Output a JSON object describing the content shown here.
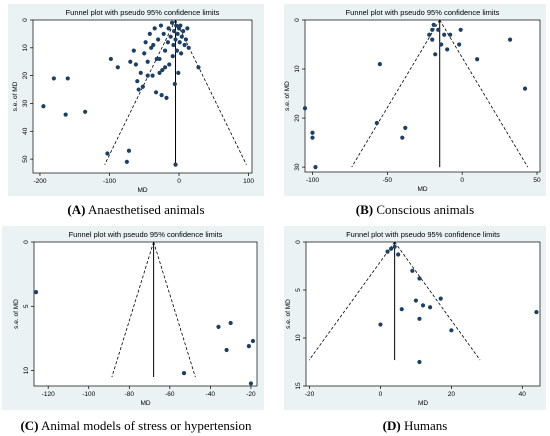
{
  "colors": {
    "background": "#eaf2f3",
    "points": "#1f3f61",
    "lines": "#000000"
  },
  "chart_data": [
    {
      "type": "scatter",
      "title": "Funnel plot with pseudo 95% confidence limits",
      "caption_letter": "(A)",
      "caption_text": "Anaesthetised animals",
      "xlabel": "MD",
      "ylabel": "s.e. of MD",
      "xlim": [
        -210,
        105
      ],
      "ylim": [
        0,
        55
      ],
      "y_inverted": true,
      "xticks": [
        -200,
        -100,
        0,
        100
      ],
      "yticks": [
        0,
        10,
        20,
        30,
        40,
        50
      ],
      "pooled_md": -5,
      "funnel_apex_se": 0,
      "funnel_base_se": 52,
      "points": [
        {
          "x": -195,
          "y": 31
        },
        {
          "x": -180,
          "y": 21
        },
        {
          "x": -160,
          "y": 21
        },
        {
          "x": -163,
          "y": 34
        },
        {
          "x": -135,
          "y": 33
        },
        {
          "x": -103,
          "y": 48
        },
        {
          "x": -98,
          "y": 14
        },
        {
          "x": -75,
          "y": 51
        },
        {
          "x": -72,
          "y": 47
        },
        {
          "x": -5,
          "y": 52
        },
        {
          "x": 28,
          "y": 17
        },
        {
          "x": -88,
          "y": 17
        },
        {
          "x": -70,
          "y": 15
        },
        {
          "x": -65,
          "y": 11
        },
        {
          "x": -60,
          "y": 22
        },
        {
          "x": -55,
          "y": 19
        },
        {
          "x": -52,
          "y": 24
        },
        {
          "x": -50,
          "y": 12
        },
        {
          "x": -48,
          "y": 8
        },
        {
          "x": -45,
          "y": 15
        },
        {
          "x": -42,
          "y": 5
        },
        {
          "x": -40,
          "y": 10
        },
        {
          "x": -38,
          "y": 20
        },
        {
          "x": -35,
          "y": 3
        },
        {
          "x": -33,
          "y": 26
        },
        {
          "x": -30,
          "y": 7
        },
        {
          "x": -28,
          "y": 14
        },
        {
          "x": -26,
          "y": 2
        },
        {
          "x": -24,
          "y": 18
        },
        {
          "x": -22,
          "y": 5
        },
        {
          "x": -20,
          "y": 11
        },
        {
          "x": -18,
          "y": 28
        },
        {
          "x": -16,
          "y": 8
        },
        {
          "x": -15,
          "y": 3
        },
        {
          "x": -14,
          "y": 16
        },
        {
          "x": -12,
          "y": 6
        },
        {
          "x": -10,
          "y": 1
        },
        {
          "x": -9,
          "y": 13
        },
        {
          "x": -8,
          "y": 9
        },
        {
          "x": -7,
          "y": 4
        },
        {
          "x": -6,
          "y": 23
        },
        {
          "x": -5,
          "y": 7
        },
        {
          "x": -4,
          "y": 2
        },
        {
          "x": -3,
          "y": 11
        },
        {
          "x": -2,
          "y": 5
        },
        {
          "x": -1,
          "y": 19
        },
        {
          "x": 0,
          "y": 3
        },
        {
          "x": 1,
          "y": 8
        },
        {
          "x": 2,
          "y": 2
        },
        {
          "x": 3,
          "y": 12
        },
        {
          "x": 4,
          "y": 6
        },
        {
          "x": 6,
          "y": 4
        },
        {
          "x": 8,
          "y": 9
        },
        {
          "x": 10,
          "y": 7
        },
        {
          "x": 12,
          "y": 3
        },
        {
          "x": 14,
          "y": 10
        },
        {
          "x": -25,
          "y": 27
        },
        {
          "x": -20,
          "y": 17
        },
        {
          "x": -58,
          "y": 25
        },
        {
          "x": -45,
          "y": 20
        },
        {
          "x": -32,
          "y": 14
        },
        {
          "x": -28,
          "y": 19
        },
        {
          "x": -62,
          "y": 16
        },
        {
          "x": -37,
          "y": 9
        }
      ]
    },
    {
      "type": "scatter",
      "title": "Funnel plot with pseudo 95% confidence limits",
      "caption_letter": "(B)",
      "caption_text": "Conscious animals",
      "xlabel": "MD",
      "ylabel": "s.e. of MD",
      "xlim": [
        -105,
        52
      ],
      "ylim": [
        0,
        31
      ],
      "y_inverted": true,
      "xticks": [
        -100,
        -50,
        0,
        50
      ],
      "yticks": [
        0,
        10,
        20,
        30
      ],
      "pooled_md": -15,
      "funnel_apex_se": 0,
      "funnel_base_se": 30,
      "points": [
        {
          "x": -105,
          "y": 18
        },
        {
          "x": -100,
          "y": 23
        },
        {
          "x": -100,
          "y": 24
        },
        {
          "x": -98,
          "y": 30
        },
        {
          "x": -55,
          "y": 9
        },
        {
          "x": -57,
          "y": 21
        },
        {
          "x": -40,
          "y": 24
        },
        {
          "x": -38,
          "y": 22
        },
        {
          "x": -22,
          "y": 3
        },
        {
          "x": -20,
          "y": 4
        },
        {
          "x": -20,
          "y": 2
        },
        {
          "x": -19,
          "y": 1
        },
        {
          "x": -18,
          "y": 7
        },
        {
          "x": -16,
          "y": 2
        },
        {
          "x": -14,
          "y": 5
        },
        {
          "x": -12,
          "y": 3
        },
        {
          "x": -10,
          "y": 6
        },
        {
          "x": -8,
          "y": 3
        },
        {
          "x": -2,
          "y": 5
        },
        {
          "x": -1,
          "y": 2
        },
        {
          "x": 10,
          "y": 8
        },
        {
          "x": 32,
          "y": 4
        },
        {
          "x": 42,
          "y": 14
        }
      ]
    },
    {
      "type": "scatter",
      "title": "Funnel plot with pseudo 95% confidence limits",
      "caption_letter": "(C)",
      "caption_text": "Animal models of stress or hypertension",
      "xlabel": "MD",
      "ylabel": "s.e. of MD",
      "xlim": [
        -127,
        -17
      ],
      "ylim": [
        0,
        11.2
      ],
      "y_inverted": true,
      "xticks": [
        -120,
        -100,
        -80,
        -60,
        -40,
        -20
      ],
      "yticks": [
        0,
        5,
        10
      ],
      "pooled_md": -68,
      "funnel_apex_se": 0,
      "funnel_base_se": 10.5,
      "points": [
        {
          "x": -126,
          "y": 3.9
        },
        {
          "x": -53,
          "y": 10.2
        },
        {
          "x": -36,
          "y": 6.6
        },
        {
          "x": -32,
          "y": 8.4
        },
        {
          "x": -30,
          "y": 6.3
        },
        {
          "x": -21,
          "y": 8.1
        },
        {
          "x": -19,
          "y": 7.7
        },
        {
          "x": -20,
          "y": 11
        }
      ]
    },
    {
      "type": "scatter",
      "title": "Funnel plot with pseudo 95% confidence limits",
      "caption_letter": "(D)",
      "caption_text": "Humans",
      "xlabel": "MD",
      "ylabel": "s.e. of MD",
      "xlim": [
        -21,
        45
      ],
      "ylim": [
        0,
        15
      ],
      "y_inverted": true,
      "xticks": [
        -20,
        0,
        20,
        40
      ],
      "yticks": [
        0,
        5,
        10,
        15
      ],
      "pooled_md": 4,
      "funnel_apex_se": 0,
      "funnel_base_se": 12.3,
      "points": [
        {
          "x": 2,
          "y": 1
        },
        {
          "x": 3,
          "y": 0.7
        },
        {
          "x": 4,
          "y": 0.5
        },
        {
          "x": 5,
          "y": 1.3
        },
        {
          "x": 6,
          "y": 7
        },
        {
          "x": 9,
          "y": 3
        },
        {
          "x": 10,
          "y": 6.1
        },
        {
          "x": 11,
          "y": 8
        },
        {
          "x": 11,
          "y": 3.8
        },
        {
          "x": 12,
          "y": 6.6
        },
        {
          "x": 14,
          "y": 6.8
        },
        {
          "x": 17,
          "y": 5.9
        },
        {
          "x": 20,
          "y": 9.2
        },
        {
          "x": 0,
          "y": 8.6
        },
        {
          "x": 11,
          "y": 12.5
        },
        {
          "x": 44,
          "y": 7.3
        }
      ]
    }
  ]
}
